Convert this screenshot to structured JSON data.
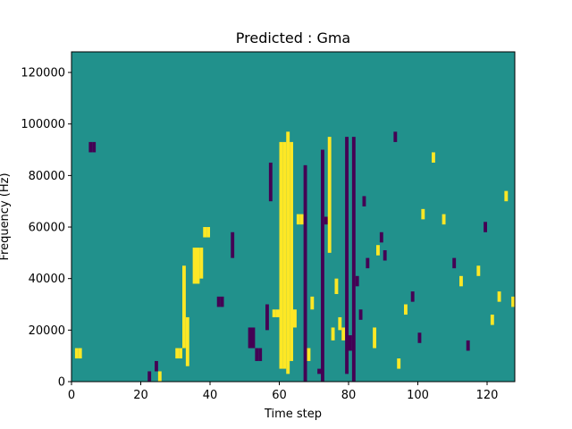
{
  "chart_data": {
    "type": "heatmap",
    "title": "Predicted : Gma",
    "xlabel": "Time step",
    "ylabel": "Frequency (Hz)",
    "xlim": [
      0,
      128
    ],
    "ylim": [
      0,
      128000
    ],
    "xticks": [
      0,
      20,
      40,
      60,
      80,
      100,
      120
    ],
    "xtick_labels": [
      "0",
      "20",
      "40",
      "60",
      "80",
      "100",
      "120"
    ],
    "yticks": [
      0,
      20000,
      40000,
      60000,
      80000,
      100000,
      120000
    ],
    "ytick_labels": [
      "0",
      "20000",
      "40000",
      "60000",
      "80000",
      "100000",
      "120000"
    ],
    "n_time_steps": 128,
    "n_freq_bins": 128,
    "colormap": "viridis",
    "colors": {
      "background": "#21918c",
      "high": "#fde725",
      "low": "#440154"
    },
    "grid": false,
    "legend": "none",
    "note_values": "cell values in {-1, 0, 1}: 0 = background (teal), 1 = yellow, -1 = purple",
    "cells": [
      {
        "t": 1,
        "f0": 9000,
        "f1": 13000,
        "v": 1
      },
      {
        "t": 2,
        "f0": 9000,
        "f1": 13000,
        "v": 1
      },
      {
        "t": 5,
        "f0": 89000,
        "f1": 93000,
        "v": -1
      },
      {
        "t": 6,
        "f0": 89000,
        "f1": 93000,
        "v": -1
      },
      {
        "t": 22,
        "f0": 0,
        "f1": 4000,
        "v": -1
      },
      {
        "t": 24,
        "f0": 4000,
        "f1": 8000,
        "v": -1
      },
      {
        "t": 25,
        "f0": 0,
        "f1": 4000,
        "v": 1
      },
      {
        "t": 30,
        "f0": 9000,
        "f1": 13000,
        "v": 1
      },
      {
        "t": 31,
        "f0": 9000,
        "f1": 13000,
        "v": 1
      },
      {
        "t": 32,
        "f0": 13000,
        "f1": 45000,
        "v": 1
      },
      {
        "t": 33,
        "f0": 6000,
        "f1": 25000,
        "v": 1
      },
      {
        "t": 35,
        "f0": 38000,
        "f1": 52000,
        "v": 1
      },
      {
        "t": 36,
        "f0": 38000,
        "f1": 52000,
        "v": 1
      },
      {
        "t": 37,
        "f0": 40000,
        "f1": 52000,
        "v": 1
      },
      {
        "t": 38,
        "f0": 56000,
        "f1": 60000,
        "v": 1
      },
      {
        "t": 39,
        "f0": 56000,
        "f1": 60000,
        "v": 1
      },
      {
        "t": 42,
        "f0": 29000,
        "f1": 33000,
        "v": -1
      },
      {
        "t": 43,
        "f0": 29000,
        "f1": 33000,
        "v": -1
      },
      {
        "t": 46,
        "f0": 48000,
        "f1": 58000,
        "v": -1
      },
      {
        "t": 51,
        "f0": 13000,
        "f1": 21000,
        "v": -1
      },
      {
        "t": 52,
        "f0": 13000,
        "f1": 21000,
        "v": -1
      },
      {
        "t": 53,
        "f0": 8000,
        "f1": 13000,
        "v": -1
      },
      {
        "t": 54,
        "f0": 8000,
        "f1": 13000,
        "v": -1
      },
      {
        "t": 56,
        "f0": 20000,
        "f1": 30000,
        "v": -1
      },
      {
        "t": 57,
        "f0": 70000,
        "f1": 85000,
        "v": -1
      },
      {
        "t": 58,
        "f0": 25000,
        "f1": 28000,
        "v": 1
      },
      {
        "t": 59,
        "f0": 25000,
        "f1": 28000,
        "v": 1
      },
      {
        "t": 60,
        "f0": 5000,
        "f1": 93000,
        "v": 1
      },
      {
        "t": 61,
        "f0": 5000,
        "f1": 93000,
        "v": 1
      },
      {
        "t": 62,
        "f0": 3000,
        "f1": 97000,
        "v": 1
      },
      {
        "t": 63,
        "f0": 8000,
        "f1": 93000,
        "v": 1
      },
      {
        "t": 64,
        "f0": 21000,
        "f1": 28000,
        "v": 1
      },
      {
        "t": 65,
        "f0": 61000,
        "f1": 65000,
        "v": 1
      },
      {
        "t": 66,
        "f0": 61000,
        "f1": 65000,
        "v": 1
      },
      {
        "t": 67,
        "f0": 0,
        "f1": 84000,
        "v": -1
      },
      {
        "t": 68,
        "f0": 8000,
        "f1": 13000,
        "v": 1
      },
      {
        "t": 69,
        "f0": 28000,
        "f1": 33000,
        "v": 1
      },
      {
        "t": 71,
        "f0": 3000,
        "f1": 5000,
        "v": -1
      },
      {
        "t": 72,
        "f0": 0,
        "f1": 90000,
        "v": -1
      },
      {
        "t": 73,
        "f0": 61000,
        "f1": 64000,
        "v": -1
      },
      {
        "t": 74,
        "f0": 50000,
        "f1": 95000,
        "v": 1
      },
      {
        "t": 75,
        "f0": 16000,
        "f1": 21000,
        "v": 1
      },
      {
        "t": 76,
        "f0": 34000,
        "f1": 40000,
        "v": 1
      },
      {
        "t": 77,
        "f0": 20000,
        "f1": 25000,
        "v": 1
      },
      {
        "t": 78,
        "f0": 16000,
        "f1": 21000,
        "v": 1
      },
      {
        "t": 79,
        "f0": 3000,
        "f1": 95000,
        "v": -1
      },
      {
        "t": 80,
        "f0": 12000,
        "f1": 18000,
        "v": -1
      },
      {
        "t": 81,
        "f0": 0,
        "f1": 95000,
        "v": -1
      },
      {
        "t": 82,
        "f0": 37000,
        "f1": 41000,
        "v": -1
      },
      {
        "t": 83,
        "f0": 24000,
        "f1": 28000,
        "v": -1
      },
      {
        "t": 84,
        "f0": 68000,
        "f1": 72000,
        "v": -1
      },
      {
        "t": 85,
        "f0": 44000,
        "f1": 48000,
        "v": -1
      },
      {
        "t": 87,
        "f0": 13000,
        "f1": 21000,
        "v": 1
      },
      {
        "t": 88,
        "f0": 49000,
        "f1": 53000,
        "v": 1
      },
      {
        "t": 89,
        "f0": 54000,
        "f1": 58000,
        "v": -1
      },
      {
        "t": 90,
        "f0": 47000,
        "f1": 51000,
        "v": -1
      },
      {
        "t": 93,
        "f0": 93000,
        "f1": 97000,
        "v": -1
      },
      {
        "t": 94,
        "f0": 5000,
        "f1": 9000,
        "v": 1
      },
      {
        "t": 96,
        "f0": 26000,
        "f1": 30000,
        "v": 1
      },
      {
        "t": 98,
        "f0": 31000,
        "f1": 35000,
        "v": -1
      },
      {
        "t": 100,
        "f0": 15000,
        "f1": 19000,
        "v": -1
      },
      {
        "t": 101,
        "f0": 63000,
        "f1": 67000,
        "v": 1
      },
      {
        "t": 104,
        "f0": 85000,
        "f1": 89000,
        "v": 1
      },
      {
        "t": 107,
        "f0": 61000,
        "f1": 65000,
        "v": 1
      },
      {
        "t": 110,
        "f0": 44000,
        "f1": 48000,
        "v": -1
      },
      {
        "t": 112,
        "f0": 37000,
        "f1": 41000,
        "v": 1
      },
      {
        "t": 114,
        "f0": 12000,
        "f1": 16000,
        "v": -1
      },
      {
        "t": 117,
        "f0": 41000,
        "f1": 45000,
        "v": 1
      },
      {
        "t": 119,
        "f0": 58000,
        "f1": 62000,
        "v": -1
      },
      {
        "t": 121,
        "f0": 22000,
        "f1": 26000,
        "v": 1
      },
      {
        "t": 123,
        "f0": 31000,
        "f1": 35000,
        "v": 1
      },
      {
        "t": 125,
        "f0": 70000,
        "f1": 74000,
        "v": 1
      },
      {
        "t": 127,
        "f0": 29000,
        "f1": 33000,
        "v": 1
      }
    ]
  }
}
